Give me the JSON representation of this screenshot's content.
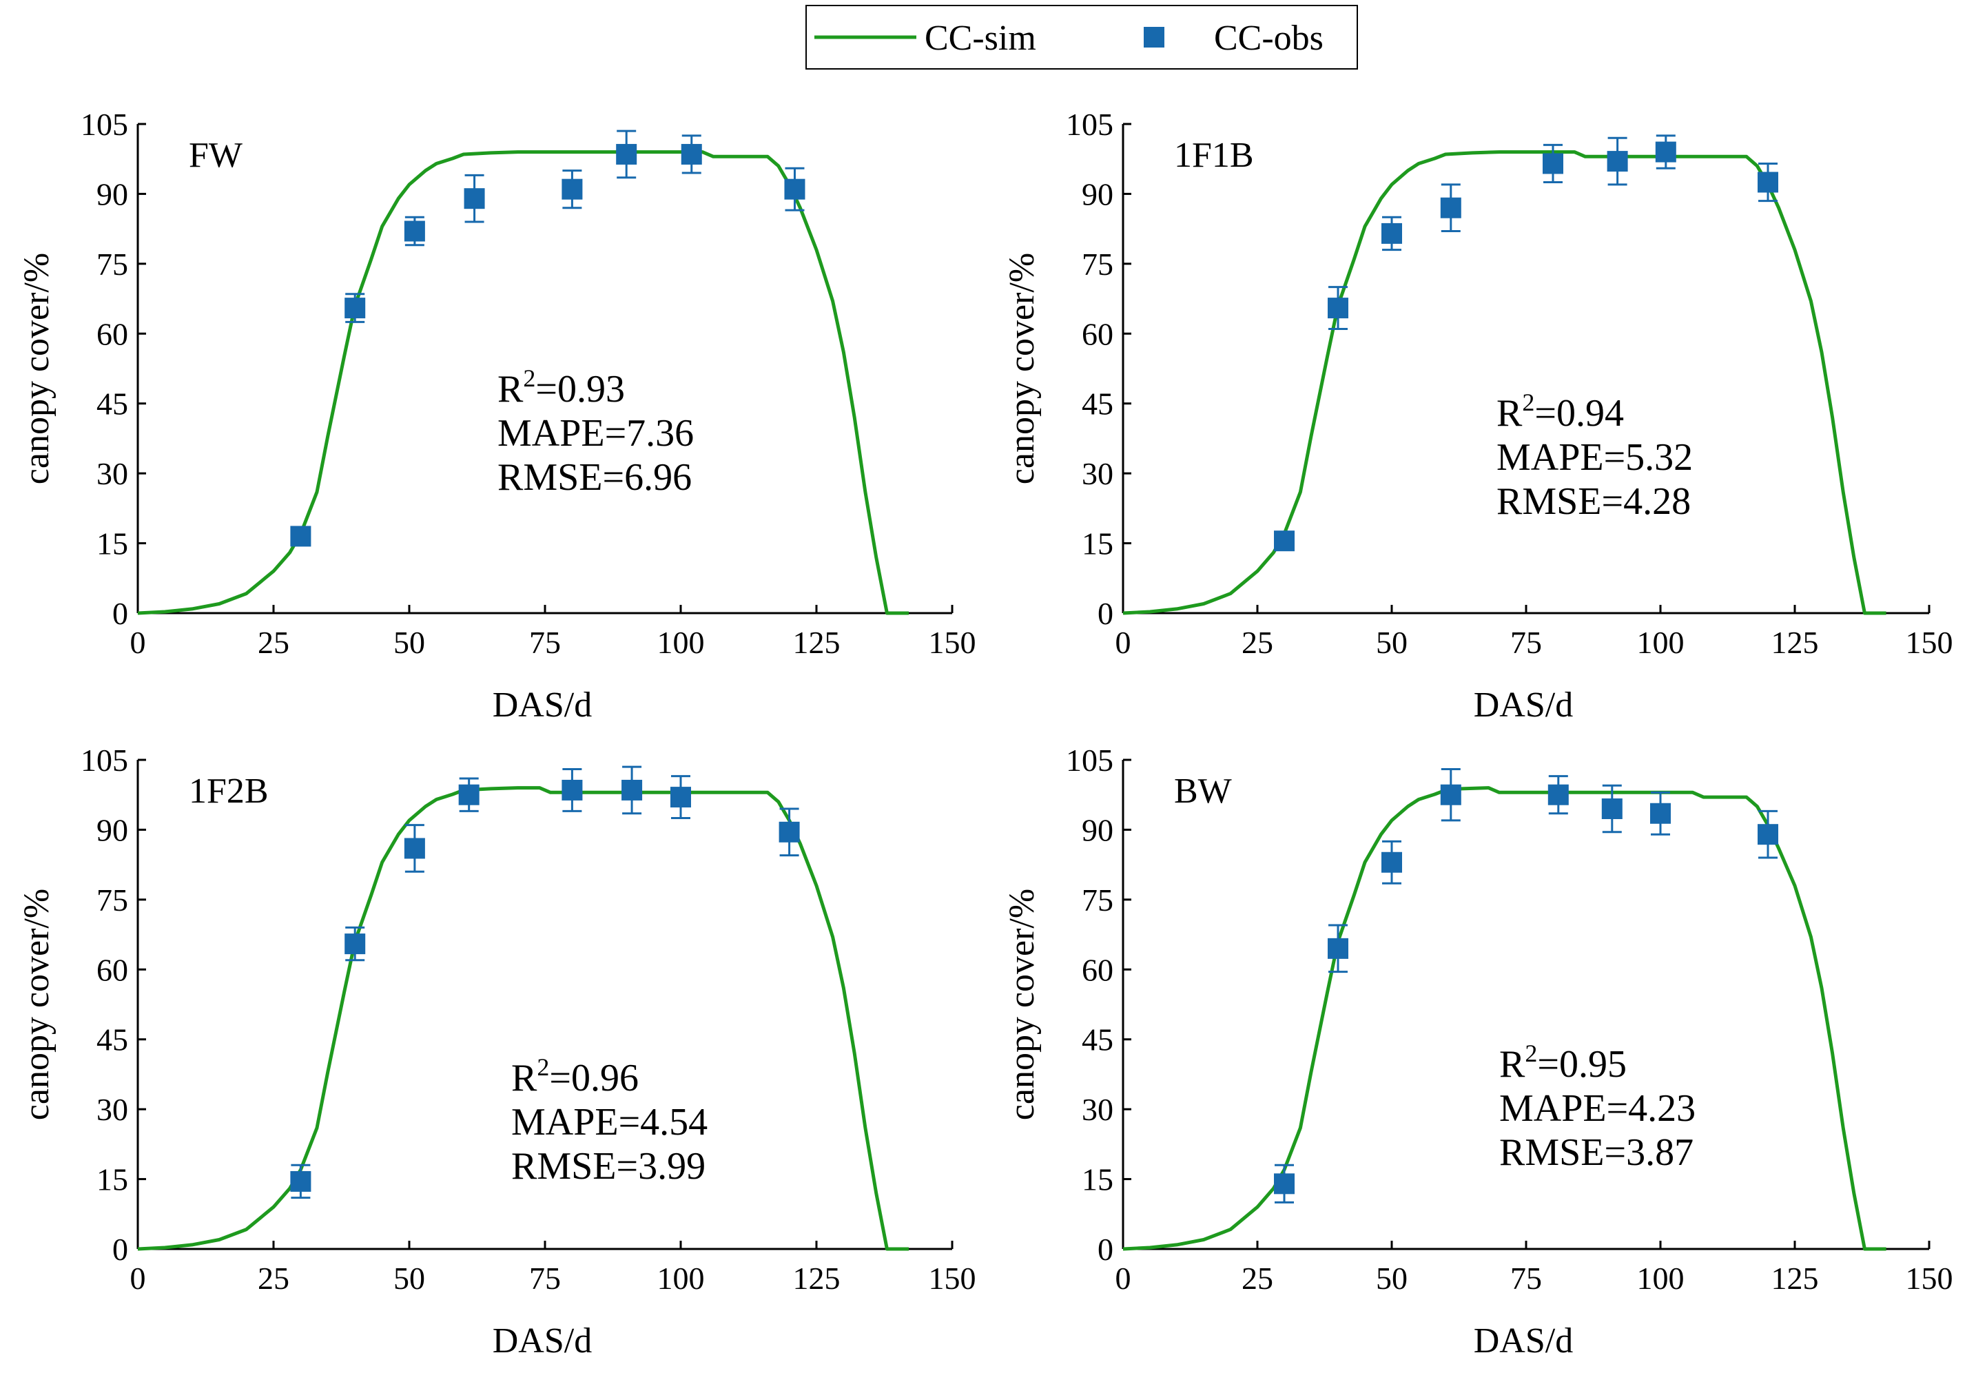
{
  "legend": {
    "sim_label": "CC-sim",
    "obs_label": "CC-obs"
  },
  "colors": {
    "sim": "#1e9a1e",
    "obs": "#1769ad",
    "axis": "#000000"
  },
  "chart_data": [
    {
      "type": "line",
      "panel": "FW",
      "xlabel": "DAS/d",
      "ylabel": "canopy cover/%",
      "xlim": [
        0,
        150
      ],
      "ylim": [
        0,
        105
      ],
      "xticks": [
        0,
        25,
        50,
        75,
        100,
        125,
        150
      ],
      "yticks": [
        0,
        15,
        30,
        45,
        60,
        75,
        90,
        105
      ],
      "stats": {
        "r2_prefix": "R",
        "r2_sup": "2",
        "r2_value": "=0.93",
        "mape": "MAPE=7.36",
        "rmse": "RMSE=6.96"
      },
      "series": [
        {
          "name": "CC-sim",
          "kind": "line",
          "x": [
            0,
            5,
            10,
            15,
            20,
            25,
            28,
            30,
            33,
            35,
            38,
            40,
            43,
            45,
            48,
            50,
            53,
            55,
            58,
            60,
            65,
            70,
            80,
            90,
            100,
            104,
            106,
            110,
            116,
            118,
            120,
            122,
            125,
            128,
            130,
            132,
            134,
            136,
            138,
            142
          ],
          "y": [
            0,
            0.3,
            0.9,
            2,
            4.2,
            9,
            13,
            17,
            26,
            38,
            55,
            66,
            76,
            83,
            89,
            92,
            95,
            96.5,
            97.6,
            98.5,
            98.8,
            99,
            99,
            99,
            99,
            99,
            98,
            98,
            98,
            96,
            92,
            87,
            78,
            67,
            56,
            42,
            26,
            12,
            0,
            0
          ]
        },
        {
          "name": "CC-obs",
          "kind": "scatter",
          "x": [
            30,
            40,
            51,
            62,
            80,
            90,
            102,
            121
          ],
          "y": [
            16.5,
            65.5,
            82,
            89,
            91,
            98.5,
            98.5,
            91
          ],
          "err": [
            1.5,
            3,
            3,
            5,
            4,
            5,
            4,
            4.5
          ]
        }
      ]
    },
    {
      "type": "line",
      "panel": "1F1B",
      "xlabel": "DAS/d",
      "ylabel": "canopy cover/%",
      "xlim": [
        0,
        150
      ],
      "ylim": [
        0,
        105
      ],
      "xticks": [
        0,
        25,
        50,
        75,
        100,
        125,
        150
      ],
      "yticks": [
        0,
        15,
        30,
        45,
        60,
        75,
        90,
        105
      ],
      "stats": {
        "r2_prefix": "R",
        "r2_sup": "2",
        "r2_value": "=0.94",
        "mape": "MAPE=5.32",
        "rmse": "RMSE=4.28"
      },
      "series": [
        {
          "name": "CC-sim",
          "kind": "line",
          "x": [
            0,
            5,
            10,
            15,
            20,
            25,
            28,
            30,
            33,
            35,
            38,
            40,
            43,
            45,
            48,
            50,
            53,
            55,
            58,
            60,
            65,
            70,
            80,
            84,
            86,
            90,
            100,
            110,
            116,
            118,
            120,
            122,
            125,
            128,
            130,
            132,
            134,
            136,
            138,
            142
          ],
          "y": [
            0,
            0.3,
            0.9,
            2,
            4.2,
            9,
            13,
            17,
            26,
            38,
            55,
            66,
            76,
            83,
            89,
            92,
            95,
            96.5,
            97.6,
            98.5,
            98.8,
            99,
            99,
            99,
            98,
            98,
            98,
            98,
            98,
            96,
            92,
            87,
            78,
            67,
            56,
            42,
            26,
            12,
            0,
            0
          ]
        },
        {
          "name": "CC-obs",
          "kind": "scatter",
          "x": [
            30,
            40,
            50,
            61,
            80,
            92,
            101,
            120
          ],
          "y": [
            15.5,
            65.5,
            81.5,
            87,
            96.5,
            97,
            99,
            92.5
          ],
          "err": [
            1.5,
            4.5,
            3.5,
            5,
            4,
            5,
            3.5,
            4
          ]
        }
      ]
    },
    {
      "type": "line",
      "panel": "1F2B",
      "xlabel": "DAS/d",
      "ylabel": "canopy cover/%",
      "xlim": [
        0,
        150
      ],
      "ylim": [
        0,
        105
      ],
      "xticks": [
        0,
        25,
        50,
        75,
        100,
        125,
        150
      ],
      "yticks": [
        0,
        15,
        30,
        45,
        60,
        75,
        90,
        105
      ],
      "stats": {
        "r2_prefix": "R",
        "r2_sup": "2",
        "r2_value": "=0.96",
        "mape": "MAPE=4.54",
        "rmse": "RMSE=3.99"
      },
      "series": [
        {
          "name": "CC-sim",
          "kind": "line",
          "x": [
            0,
            5,
            10,
            15,
            20,
            25,
            28,
            30,
            33,
            35,
            38,
            40,
            43,
            45,
            48,
            50,
            53,
            55,
            58,
            60,
            65,
            70,
            74,
            76,
            80,
            90,
            100,
            110,
            116,
            118,
            120,
            122,
            125,
            128,
            130,
            132,
            134,
            136,
            138,
            142
          ],
          "y": [
            0,
            0.3,
            0.9,
            2,
            4.2,
            9,
            13,
            17,
            26,
            38,
            55,
            66,
            76,
            83,
            89,
            92,
            95,
            96.5,
            97.6,
            98.5,
            98.8,
            99,
            99,
            98,
            98,
            98,
            98,
            98,
            98,
            96,
            92,
            87,
            78,
            67,
            56,
            42,
            26,
            12,
            0,
            0
          ]
        },
        {
          "name": "CC-obs",
          "kind": "scatter",
          "x": [
            30,
            40,
            51,
            61,
            80,
            91,
            100,
            120
          ],
          "y": [
            14.5,
            65.5,
            86,
            97.5,
            98.5,
            98.5,
            97,
            89.5
          ],
          "err": [
            3.5,
            3.5,
            5,
            3.5,
            4.5,
            5,
            4.5,
            5
          ]
        }
      ]
    },
    {
      "type": "line",
      "panel": "BW",
      "xlabel": "DAS/d",
      "ylabel": "canopy cover/%",
      "xlim": [
        0,
        150
      ],
      "ylim": [
        0,
        105
      ],
      "xticks": [
        0,
        25,
        50,
        75,
        100,
        125,
        150
      ],
      "yticks": [
        0,
        15,
        30,
        45,
        60,
        75,
        90,
        105
      ],
      "stats": {
        "r2_prefix": "R",
        "r2_sup": "2",
        "r2_value": "=0.95",
        "mape": "MAPE=4.23",
        "rmse": "RMSE=3.87"
      },
      "series": [
        {
          "name": "CC-sim",
          "kind": "line",
          "x": [
            0,
            5,
            10,
            15,
            20,
            25,
            28,
            30,
            33,
            35,
            38,
            40,
            43,
            45,
            48,
            50,
            53,
            55,
            58,
            60,
            63,
            68,
            70,
            80,
            90,
            100,
            106,
            108,
            112,
            116,
            118,
            120,
            122,
            125,
            128,
            130,
            132,
            134,
            136,
            138,
            142
          ],
          "y": [
            0,
            0.3,
            0.9,
            2,
            4.2,
            9,
            13,
            17,
            26,
            38,
            55,
            66,
            76,
            83,
            89,
            92,
            95,
            96.5,
            97.6,
            98.5,
            98.8,
            99,
            98,
            98,
            98,
            98,
            98,
            97,
            97,
            97,
            95,
            91,
            86,
            78,
            67,
            56,
            42,
            26,
            12,
            0,
            0
          ]
        },
        {
          "name": "CC-obs",
          "kind": "scatter",
          "x": [
            30,
            40,
            50,
            61,
            81,
            91,
            100,
            120
          ],
          "y": [
            14,
            64.5,
            83,
            97.5,
            97.5,
            94.5,
            93.5,
            89
          ],
          "err": [
            4,
            5,
            4.5,
            5.5,
            4,
            5,
            4.5,
            5
          ]
        }
      ]
    }
  ]
}
